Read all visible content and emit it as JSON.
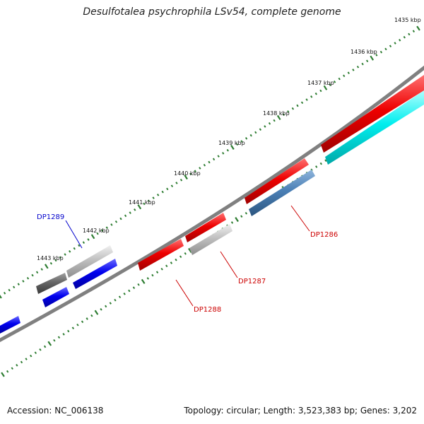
{
  "title": "Desulfotalea psychrophila LSv54, complete genome",
  "footer": {
    "accession": "Accession: NC_006138",
    "summary": "Topology: circular; Length: 3,523,383 bp; Genes: 3,202"
  },
  "kbp_labels": [
    "1435 kbp",
    "1436 kbp",
    "1437 kbp",
    "1438 kbp",
    "1439 kbp",
    "1440 kbp",
    "1441 kbp",
    "1442 kbp",
    "1443 kbp"
  ],
  "gene_labels": [
    {
      "text": "DP1286",
      "color": "#cc0000"
    },
    {
      "text": "DP1287",
      "color": "#cc0000"
    },
    {
      "text": "DP1288",
      "color": "#cc0000"
    },
    {
      "text": "DP1289",
      "color": "#0000cc"
    }
  ],
  "colors": {
    "red": "#ee0000",
    "blue": "#0000ee",
    "cyan": "#00eeee",
    "steel": "#4a7fb5",
    "lightgray": "#c0c0c0",
    "darkgray": "#666666",
    "backbone": "#808080",
    "tick": "#2e7d32"
  }
}
